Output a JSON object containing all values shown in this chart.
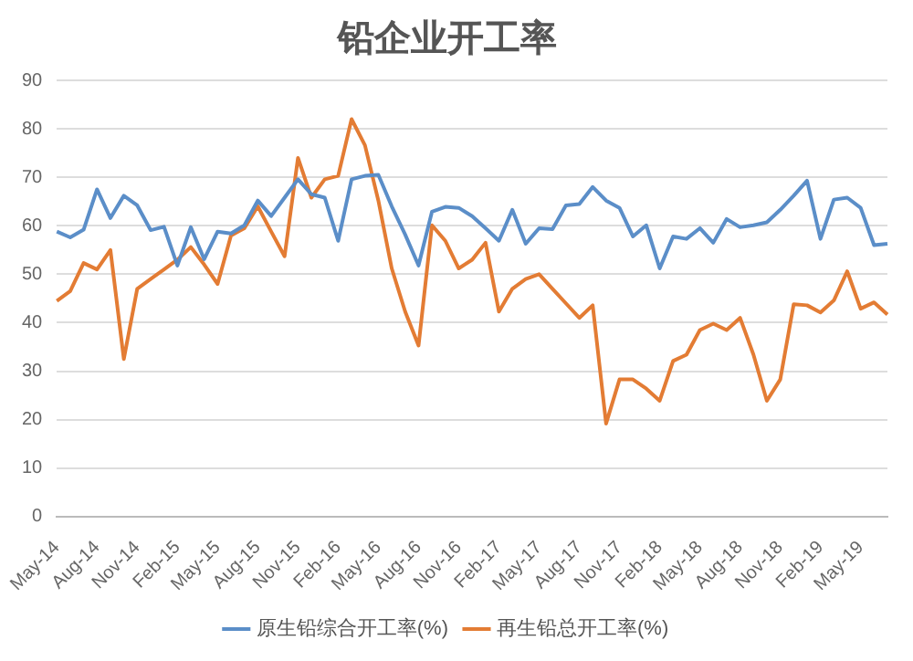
{
  "chart_data": {
    "type": "line",
    "title": "铅企业开工率",
    "categories": [
      "May-14",
      null,
      null,
      "Aug-14",
      null,
      null,
      "Nov-14",
      null,
      null,
      "Feb-15",
      null,
      null,
      "May-15",
      null,
      null,
      "Aug-15",
      null,
      null,
      "Nov-15",
      null,
      null,
      "Feb-16",
      null,
      null,
      "May-16",
      null,
      null,
      "Aug-16",
      null,
      null,
      "Nov-16",
      null,
      null,
      "Feb-17",
      null,
      null,
      "May-17",
      null,
      null,
      "Aug-17",
      null,
      null,
      "Nov-17",
      null,
      null,
      "Feb-18",
      null,
      null,
      "May-18",
      null,
      null,
      "Aug-18",
      null,
      null,
      "Nov-18",
      null,
      null,
      "Feb-19",
      null,
      null,
      "May-19",
      null,
      null
    ],
    "series": [
      {
        "name": "原生铅综合开工率(%)",
        "color": "#5b8ec8",
        "values": [
          58.8,
          57.6,
          59.2,
          67.5,
          61.6,
          66.2,
          64.2,
          59.1,
          59.8,
          51.8,
          59.7,
          53.1,
          58.8,
          58.4,
          60.1,
          65.2,
          62.0,
          65.8,
          69.6,
          66.5,
          65.8,
          56.9,
          69.6,
          70.3,
          70.5,
          64,
          58.2,
          51.8,
          62.9,
          63.9,
          63.7,
          62,
          59.5,
          56.9,
          63.3,
          56.3,
          59.5,
          59.3,
          64.2,
          64.5,
          68.0,
          65.2,
          63.7,
          57.8,
          60.1,
          51.2,
          57.8,
          57.3,
          59.5,
          56.5,
          61.4,
          59.7,
          60.1,
          60.7,
          63.3,
          66.2,
          69.3,
          57.3,
          65.4,
          65.8,
          63.7,
          56.0,
          56.3
        ]
      },
      {
        "name": "再生铅总开工率(%)",
        "color": "#e37c34",
        "values": [
          44.5,
          46.5,
          52.3,
          51,
          55,
          32.5,
          47,
          49,
          51,
          53,
          55.6,
          52,
          48,
          58,
          59.5,
          64,
          58.8,
          53.7,
          74,
          65.8,
          69.6,
          70.3,
          82,
          76.6,
          65.2,
          51.2,
          42.3,
          35.3,
          60.1,
          56.9,
          51.2,
          53,
          56.5,
          42.3,
          47,
          49,
          50,
          47,
          44,
          41,
          43.6,
          19.2,
          28.3,
          28.3,
          26.4,
          23.9,
          32.1,
          33.4,
          38.5,
          39.8,
          38.5,
          41,
          33.4,
          23.9,
          28.3,
          43.8,
          43.6,
          42.1,
          44.6,
          50.6,
          42.9,
          44.2,
          41.7
        ]
      }
    ],
    "ylim": [
      0,
      90
    ],
    "yticks": [
      0,
      10,
      20,
      30,
      40,
      50,
      60,
      70,
      80,
      90
    ],
    "grid": "y",
    "legend": "bottom",
    "marker": "none",
    "line_style": "solid"
  }
}
